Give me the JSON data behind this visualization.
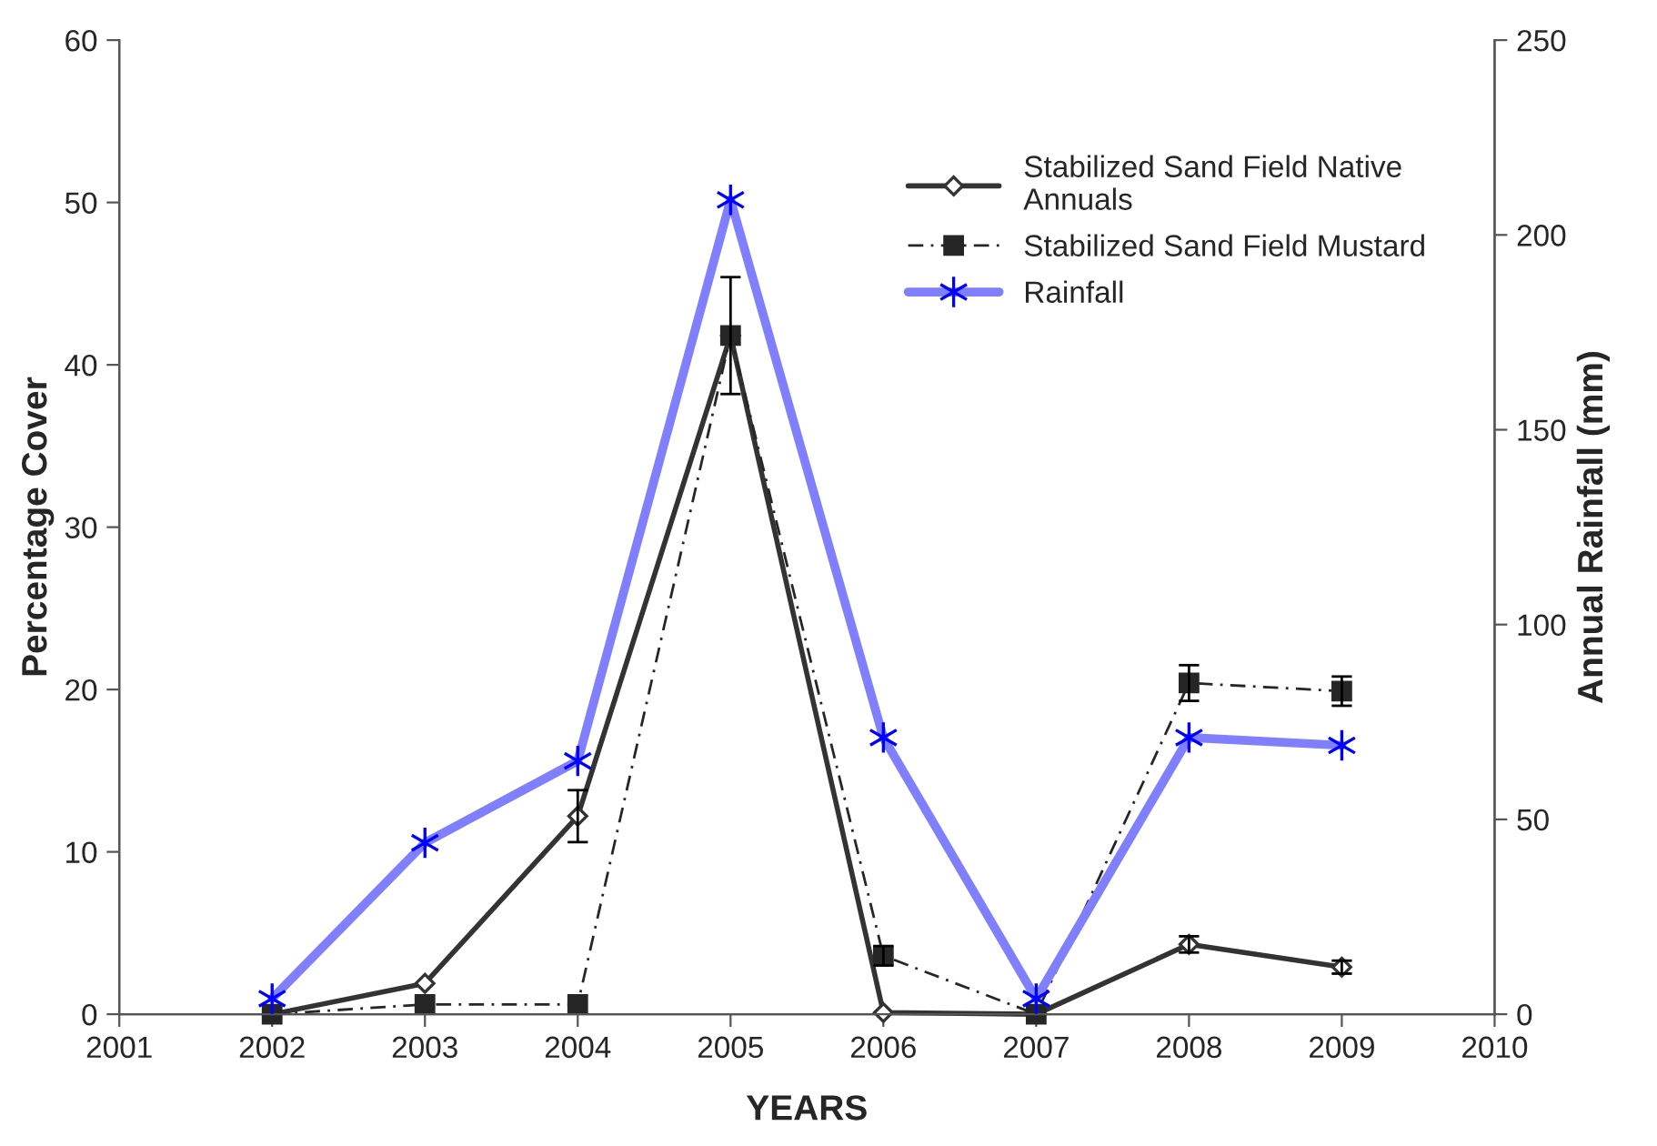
{
  "chart_data": {
    "type": "line",
    "xlabel": "YEARS",
    "ylabel": "Percentage Cover",
    "y2label": "Annual Rainfall (mm)",
    "x": [
      2002,
      2003,
      2004,
      2005,
      2006,
      2007,
      2008,
      2009
    ],
    "xlim": [
      2001,
      2010
    ],
    "xticks": [
      2001,
      2002,
      2003,
      2004,
      2005,
      2006,
      2007,
      2008,
      2009,
      2010
    ],
    "ylim": [
      0,
      60
    ],
    "yticks": [
      0,
      10,
      20,
      30,
      40,
      50,
      60
    ],
    "y2lim": [
      0,
      250
    ],
    "y2ticks": [
      0,
      50,
      100,
      150,
      200,
      250
    ],
    "grid": false,
    "legend": "top right",
    "series": [
      {
        "name": "Stabilized Sand Field Native Annuals",
        "color": "#333333",
        "marker": "diamond",
        "line_style": "solid",
        "values": [
          0,
          1.9,
          12.2,
          41.8,
          0.1,
          0,
          4.3,
          2.9
        ],
        "errors": [
          null,
          null,
          1.6,
          3.6,
          null,
          null,
          0.5,
          0.4
        ]
      },
      {
        "name": "Stabilized Sand Field Mustard",
        "color": "#262626",
        "marker": "square",
        "line_style": "dashed",
        "values": [
          0,
          0.6,
          0.6,
          41.8,
          3.6,
          0,
          20.4,
          19.9
        ],
        "errors": [
          null,
          null,
          null,
          null,
          0.6,
          null,
          1.1,
          0.9
        ]
      },
      {
        "name": "Rainfall",
        "color": "#7f7fff",
        "marker": "cross",
        "line_style": "solid",
        "axis": "y2",
        "values": [
          4,
          44,
          65,
          209,
          71,
          4,
          71,
          69
        ]
      }
    ]
  }
}
